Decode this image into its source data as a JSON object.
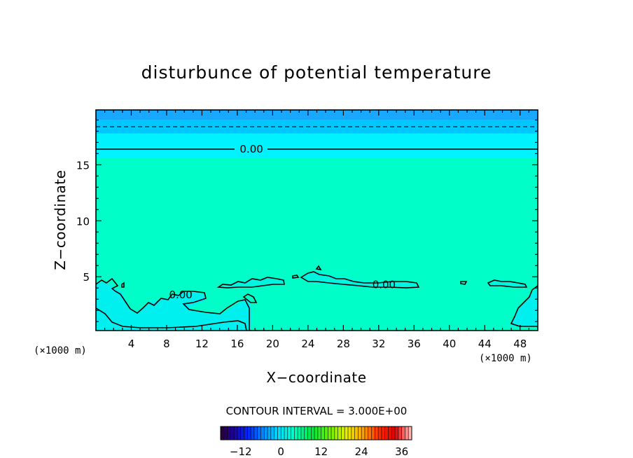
{
  "chart_data": {
    "type": "contour",
    "title": "disturbunce of potential temperature",
    "xlabel": "X−coordinate",
    "ylabel": "Z−coordinate",
    "x_unit_label_left": "(×1000 m)",
    "x_unit_label_right": "(×1000 m)",
    "xlim": [
      0,
      50
    ],
    "ylim": [
      0.2,
      19.9
    ],
    "x_ticks": [
      4,
      8,
      12,
      16,
      20,
      24,
      28,
      32,
      36,
      40,
      44,
      48
    ],
    "y_ticks": [
      5,
      10,
      15
    ],
    "contour_interval_text": "CONTOUR INTERVAL = 3.000E+00",
    "contour_labels": [
      {
        "text": "0.00",
        "x": 17.6,
        "z": 16.4
      },
      {
        "text": "0.00",
        "x": 9.6,
        "z": 3.4
      },
      {
        "text": "0.00",
        "x": 32.6,
        "z": 4.3
      }
    ],
    "upper_levels": {
      "solid_zero_line_z": 16.4,
      "dashed_line_z": 18.3
    },
    "colorbar": {
      "min": -18,
      "max": 39,
      "tick_values": [
        -12,
        0,
        12,
        24,
        36
      ],
      "tick_labels": [
        "−12",
        "0",
        "12",
        "24",
        "36"
      ]
    },
    "colors": {
      "background_field": "#00FFC8",
      "band_top": "#19A8FF",
      "band_mid": "#00C8FF",
      "band_low": "#00F2FF",
      "low_region": "#00F0F0"
    }
  }
}
